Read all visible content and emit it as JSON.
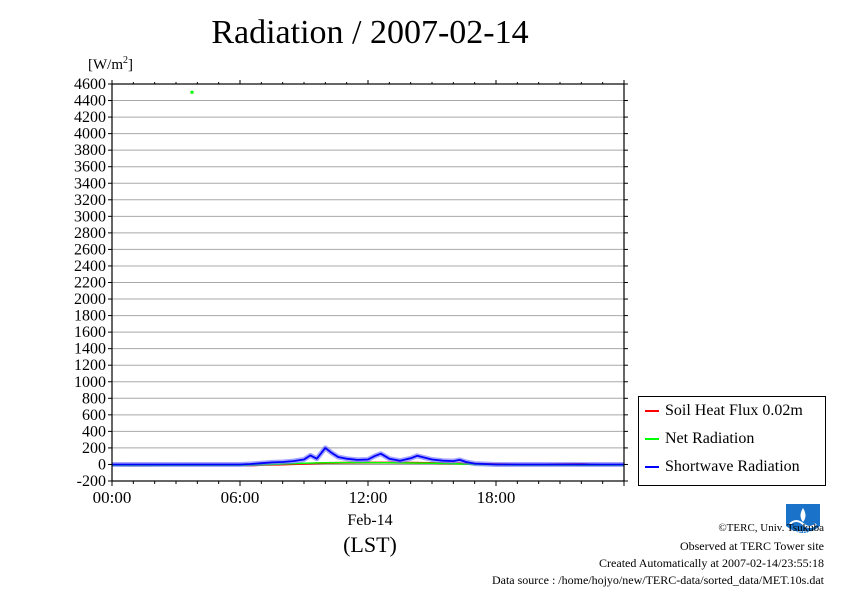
{
  "title": "Radiation / 2007-02-14",
  "chart_data": {
    "type": "line",
    "title": "Radiation / 2007-02-14",
    "ylabel": "[W/m2]",
    "ylabel_base": "[W/m",
    "ylabel_sup": "2",
    "ylabel_close": "]",
    "xlabel": "(LST)",
    "x_date_label": "Feb-14",
    "ylim": [
      -200,
      4600
    ],
    "yticks": [
      -200,
      0,
      200,
      400,
      600,
      800,
      1000,
      1200,
      1400,
      1600,
      1800,
      2000,
      2200,
      2400,
      2600,
      2800,
      3000,
      3200,
      3400,
      3600,
      3800,
      4000,
      4200,
      4400,
      4600
    ],
    "xlim_hours": [
      0,
      24
    ],
    "xticks": [
      {
        "hour": 0,
        "label": "00:00"
      },
      {
        "hour": 6,
        "label": "06:00"
      },
      {
        "hour": 12,
        "label": "12:00"
      },
      {
        "hour": 18,
        "label": "18:00"
      }
    ],
    "grid": true,
    "legend_position": "right",
    "series": [
      {
        "name": "Soil Heat Flux 0.02m",
        "color": "#ff0000",
        "points": [
          [
            0,
            -5
          ],
          [
            1,
            -8
          ],
          [
            2,
            -7
          ],
          [
            3,
            -5
          ],
          [
            4,
            -4
          ],
          [
            5,
            -3
          ],
          [
            6,
            -4
          ],
          [
            6.5,
            -12
          ],
          [
            7,
            -5
          ],
          [
            8,
            0
          ],
          [
            9,
            8
          ],
          [
            10,
            18
          ],
          [
            11,
            20
          ],
          [
            12,
            22
          ],
          [
            13,
            22
          ],
          [
            14,
            20
          ],
          [
            15,
            18
          ],
          [
            16,
            12
          ],
          [
            17,
            8
          ],
          [
            18,
            4
          ],
          [
            19,
            0
          ],
          [
            20,
            -2
          ],
          [
            21,
            2
          ],
          [
            22,
            5
          ],
          [
            23,
            -6
          ],
          [
            24,
            -5
          ]
        ]
      },
      {
        "name": "Net Radiation",
        "color": "#00ff00",
        "points": [
          [
            0,
            -10
          ],
          [
            1,
            -12
          ],
          [
            2,
            -11
          ],
          [
            3,
            -10
          ],
          [
            3.75,
            4500
          ],
          [
            4,
            -10
          ],
          [
            5,
            -10
          ],
          [
            6,
            -10
          ],
          [
            7,
            -5
          ],
          [
            8,
            5
          ],
          [
            9,
            15
          ],
          [
            10,
            20
          ],
          [
            11,
            22
          ],
          [
            12,
            22
          ],
          [
            13,
            20
          ],
          [
            14,
            18
          ],
          [
            15,
            15
          ],
          [
            16,
            10
          ],
          [
            17,
            0
          ],
          [
            18,
            -5
          ],
          [
            19,
            -8
          ],
          [
            20,
            -8
          ],
          [
            21,
            -8
          ],
          [
            22,
            -9
          ],
          [
            23,
            -10
          ],
          [
            24,
            -10
          ]
        ]
      },
      {
        "name": "Shortwave Radiation",
        "color": "#0000ff",
        "points": [
          [
            0,
            0
          ],
          [
            1,
            0
          ],
          [
            2,
            0
          ],
          [
            3,
            0
          ],
          [
            4,
            0
          ],
          [
            5,
            0
          ],
          [
            6,
            0
          ],
          [
            6.5,
            5
          ],
          [
            7,
            15
          ],
          [
            7.5,
            25
          ],
          [
            8,
            30
          ],
          [
            8.5,
            40
          ],
          [
            9,
            60
          ],
          [
            9.3,
            110
          ],
          [
            9.6,
            70
          ],
          [
            10,
            200
          ],
          [
            10.3,
            140
          ],
          [
            10.6,
            90
          ],
          [
            11,
            70
          ],
          [
            11.5,
            55
          ],
          [
            12,
            60
          ],
          [
            12.3,
            100
          ],
          [
            12.6,
            130
          ],
          [
            13,
            70
          ],
          [
            13.5,
            45
          ],
          [
            14,
            75
          ],
          [
            14.3,
            105
          ],
          [
            14.6,
            85
          ],
          [
            15,
            60
          ],
          [
            15.5,
            45
          ],
          [
            16,
            40
          ],
          [
            16.3,
            55
          ],
          [
            16.6,
            30
          ],
          [
            17,
            10
          ],
          [
            18,
            0
          ],
          [
            19,
            0
          ],
          [
            20,
            0
          ],
          [
            21,
            0
          ],
          [
            22,
            0
          ],
          [
            23,
            0
          ],
          [
            24,
            0
          ]
        ]
      }
    ]
  },
  "footer": {
    "copyright": "©TERC, Univ. Tsukuba",
    "observed": "Observed at TERC Tower site",
    "created": "Created Automatically at 2007-02-14/23:55:18",
    "source": "Data source : /home/hojyo/new/TERC-data/sorted_data/MET.10s.dat"
  },
  "logo": {
    "text": "TERC",
    "color": "#1a73c9"
  }
}
